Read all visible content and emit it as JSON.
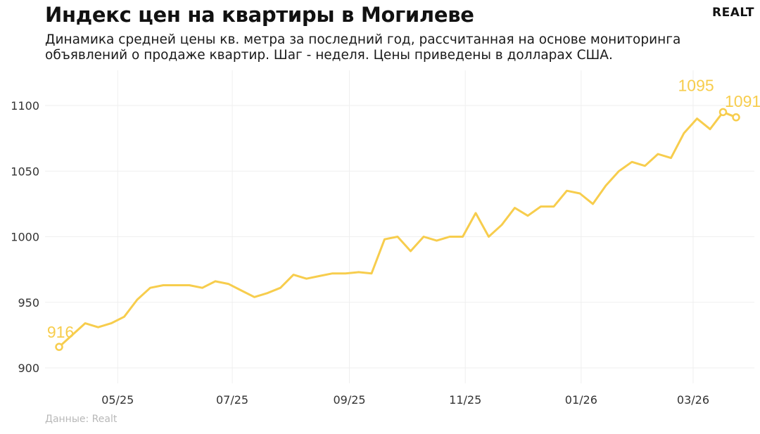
{
  "header": {
    "title": "Индекс цен на квартиры в Могилеве",
    "subtitle": "Динамика средней цены кв. метра за последний год, рассчитанная на основе мониторинга объявлений о продаже квартир. Шаг - неделя. Цены приведены в долларах США.",
    "logo": "REALT"
  },
  "footer": {
    "source": "Данные: Realt"
  },
  "colors": {
    "line": "#f7cd4d",
    "grid": "#efefef"
  },
  "chart_data": {
    "type": "line",
    "title": "Индекс цен на квартиры в Могилеве",
    "xlabel": "",
    "ylabel": "",
    "ylim": [
      890,
      1110
    ],
    "y_ticks": [
      900,
      950,
      1000,
      1050,
      1100
    ],
    "x_tick_labels": [
      "05/25",
      "07/25",
      "09/25",
      "11/25",
      "01/26",
      "03/26"
    ],
    "x_tick_index": [
      4.5,
      13.3,
      22.3,
      31.2,
      40.1,
      48.7
    ],
    "grid": true,
    "series": [
      {
        "values": [
          916,
          925,
          934,
          931,
          934,
          939,
          952,
          961,
          963,
          963,
          963,
          961,
          966,
          964,
          959,
          954,
          957,
          961,
          971,
          968,
          970,
          972,
          972,
          973,
          972,
          998,
          1000,
          989,
          1000,
          997,
          1000,
          1000,
          1018,
          1000,
          1009,
          1022,
          1016,
          1023,
          1023,
          1035,
          1033,
          1025,
          1039,
          1050,
          1057,
          1054,
          1063,
          1060,
          1079,
          1090,
          1082,
          1095,
          1091
        ]
      }
    ],
    "annotations": [
      {
        "index": 0,
        "label": "916"
      },
      {
        "index": 51,
        "label": "1095"
      },
      {
        "index": 52,
        "label": "1091"
      }
    ]
  }
}
